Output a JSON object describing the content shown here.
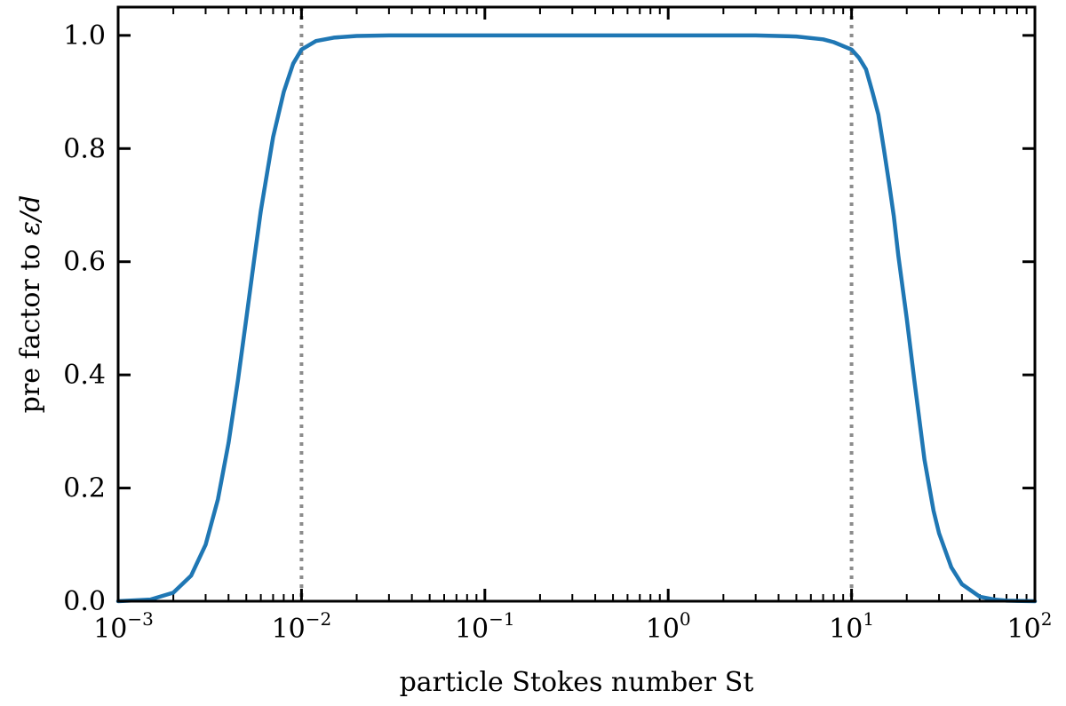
{
  "chart_data": {
    "type": "line",
    "title": "",
    "xlabel": "particle Stokes number St",
    "ylabel_prefix": "pre factor to ",
    "ylabel_math": "ε/d",
    "xscale": "log",
    "xlim": [
      0.001,
      100
    ],
    "ylim": [
      0.0,
      1.05
    ],
    "grid": false,
    "legend": "none",
    "x_ticks": [
      {
        "base": "10",
        "exp": "−3"
      },
      {
        "base": "10",
        "exp": "−2"
      },
      {
        "base": "10",
        "exp": "−1"
      },
      {
        "base": "10",
        "exp": "0"
      },
      {
        "base": "10",
        "exp": "1"
      },
      {
        "base": "10",
        "exp": "2"
      }
    ],
    "x_tick_values": [
      0.001,
      0.01,
      0.1,
      1,
      10,
      100
    ],
    "y_ticks": [
      "0.0",
      "0.2",
      "0.4",
      "0.6",
      "0.8",
      "1.0"
    ],
    "y_tick_values": [
      0.0,
      0.2,
      0.4,
      0.6,
      0.8,
      1.0
    ],
    "series": [
      {
        "color": "#1f77b4",
        "x": [
          0.001,
          0.0015,
          0.002,
          0.0025,
          0.003,
          0.0035,
          0.004,
          0.0045,
          0.005,
          0.0055,
          0.006,
          0.007,
          0.008,
          0.009,
          0.01,
          0.012,
          0.015,
          0.02,
          0.03,
          0.05,
          0.1,
          1,
          3,
          5,
          7,
          8,
          10,
          11,
          12,
          13,
          14,
          15,
          16,
          17,
          18,
          20,
          22,
          25,
          28,
          30,
          35,
          40,
          50,
          60,
          70,
          100
        ],
        "y": [
          0.0,
          0.003,
          0.015,
          0.045,
          0.1,
          0.18,
          0.28,
          0.39,
          0.5,
          0.6,
          0.69,
          0.82,
          0.9,
          0.95,
          0.975,
          0.99,
          0.996,
          0.999,
          1.0,
          1.0,
          1.0,
          1.0,
          1.0,
          0.998,
          0.993,
          0.988,
          0.975,
          0.96,
          0.94,
          0.9,
          0.86,
          0.8,
          0.74,
          0.68,
          0.61,
          0.5,
          0.39,
          0.25,
          0.16,
          0.12,
          0.06,
          0.03,
          0.008,
          0.003,
          0.001,
          0.0
        ]
      }
    ],
    "reference_lines": [
      {
        "x": 0.01,
        "style": "dotted",
        "color": "#8c8c8c"
      },
      {
        "x": 10,
        "style": "dotted",
        "color": "#8c8c8c"
      }
    ]
  }
}
